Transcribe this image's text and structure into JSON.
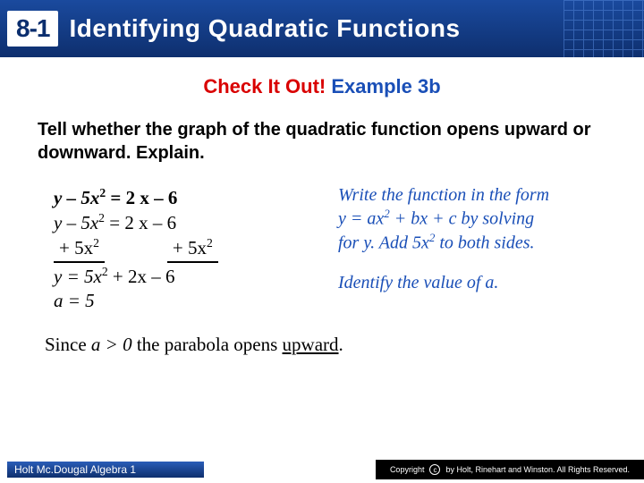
{
  "header": {
    "section_number": "8-1",
    "title": "Identifying Quadratic Functions",
    "bg_gradient_top": "#1a4a9e",
    "bg_gradient_bottom": "#0e2f6e",
    "grid_color": "#4d7fd1"
  },
  "check_it_out": {
    "red_text": "Check It Out!",
    "blue_text": "Example 3b",
    "red_color": "#d90000",
    "blue_color": "#1a4fb7"
  },
  "prompt": "Tell whether the graph of the quadratic function opens upward or downward. Explain.",
  "math": {
    "line1_lhs": "y – 5x",
    "line1_rhs": " = 2 x – 6",
    "line2_lhs": "y – 5x",
    "line2_rhs": " = 2 x – 6",
    "line3_left": "+ 5x",
    "line3_right": "+ 5x",
    "line4": "y = 5x",
    "line4_tail": " + 2x – 6",
    "line5": "a = 5",
    "exp": "2"
  },
  "explain": {
    "p1_l1": "Write the function in the form",
    "p1_l2_a": "y = ax",
    "p1_l2_b": "+ bx + c by solving",
    "p1_l3_a": "for y. Add 5x",
    "p1_l3_b": " to both sides.",
    "p2": "Identify the value of a.",
    "color": "#1a4fb7"
  },
  "conclusion": {
    "pre": "Since ",
    "cond": "a > 0",
    "mid": " the parabola opens ",
    "dir": "upward",
    "end": "."
  },
  "footer": {
    "left": "Holt Mc.Dougal Algebra 1",
    "right": "by Holt, Rinehart and Winston. All Rights Reserved.",
    "copyright_word": "Copyright"
  },
  "typography": {
    "header_fontsize": 28,
    "body_font": "Times New Roman",
    "prompt_fontsize": 20
  }
}
